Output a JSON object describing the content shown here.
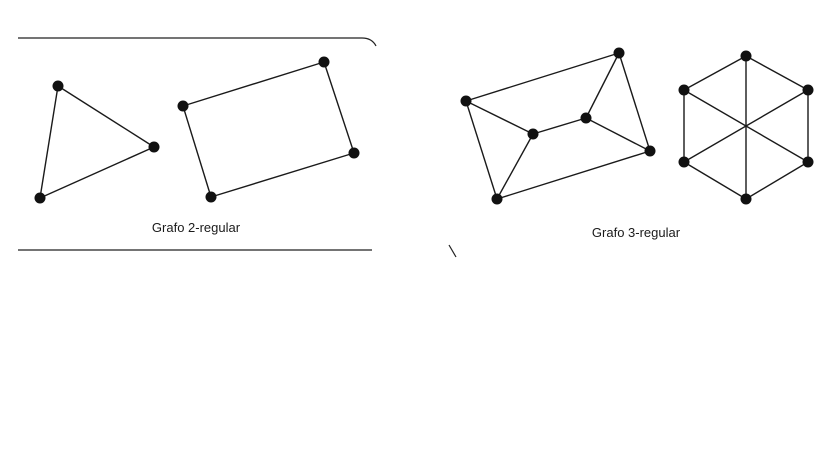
{
  "captions": {
    "two_regular": "Grafo 2-regular",
    "three_regular": "Grafo 3-regular"
  },
  "colors": {
    "ink": "#1a1a1a",
    "background": "#ffffff"
  }
}
